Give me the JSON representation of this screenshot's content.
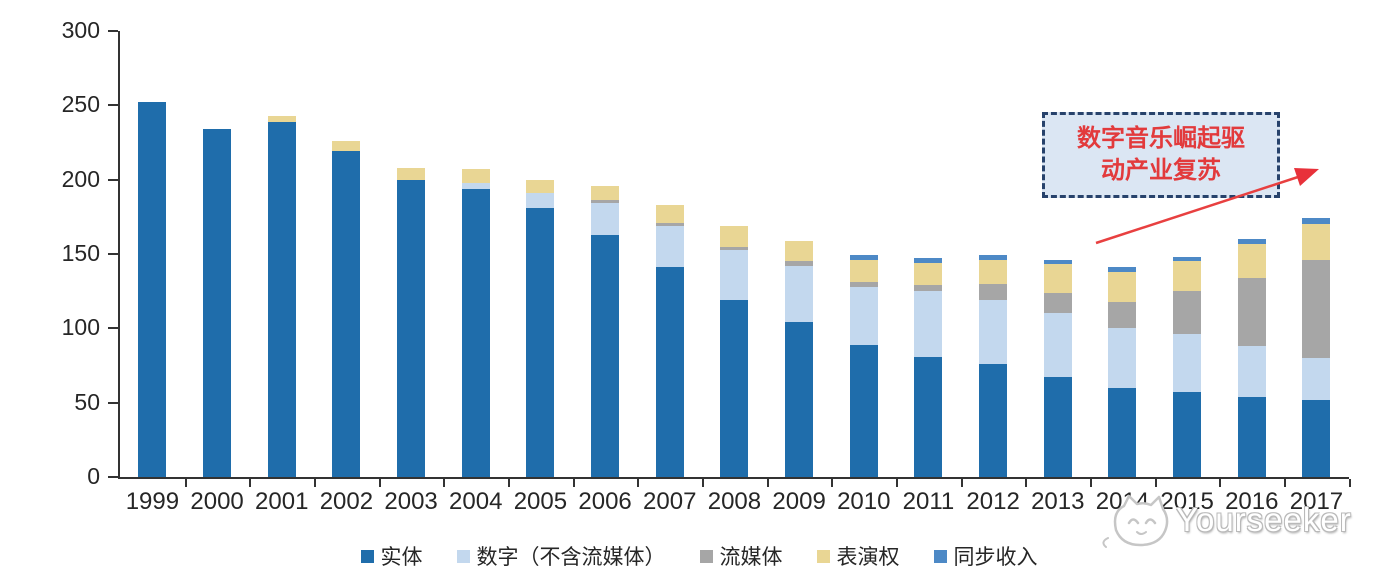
{
  "chart_data": {
    "type": "bar",
    "stacked": true,
    "title": "",
    "xlabel": "",
    "ylabel": "",
    "ylim": [
      0,
      300
    ],
    "y_ticks": [
      0,
      50,
      100,
      150,
      200,
      250,
      300
    ],
    "grid": false,
    "legend_position": "bottom",
    "categories": [
      "1999",
      "2000",
      "2001",
      "2002",
      "2003",
      "2004",
      "2005",
      "2006",
      "2007",
      "2008",
      "2009",
      "2010",
      "2011",
      "2012",
      "2013",
      "2014",
      "2015",
      "2016",
      "2017"
    ],
    "series": [
      {
        "key": "physical",
        "name": "实体",
        "color": "#1f6dab",
        "values": [
          252,
          234,
          239,
          219,
          200,
          194,
          181,
          163,
          141,
          119,
          104,
          89,
          81,
          76,
          67,
          60,
          57,
          54,
          52
        ]
      },
      {
        "key": "digital-excl-streaming",
        "name": "数字（不含流媒体）",
        "color": "#c3d8ee",
        "values": [
          0,
          0,
          0,
          0,
          0,
          4,
          10,
          21,
          28,
          34,
          38,
          39,
          44,
          43,
          43,
          40,
          39,
          34,
          28
        ]
      },
      {
        "key": "streaming",
        "name": "流媒体",
        "color": "#a6a6a6",
        "values": [
          0,
          0,
          0,
          0,
          0,
          0,
          0,
          2,
          2,
          2,
          3,
          3,
          4,
          11,
          14,
          18,
          29,
          46,
          66
        ]
      },
      {
        "key": "performance-rights",
        "name": "表演权",
        "color": "#e9d694",
        "values": [
          0,
          0,
          4,
          7,
          8,
          9,
          9,
          10,
          12,
          14,
          14,
          15,
          15,
          16,
          19,
          20,
          20,
          23,
          24
        ]
      },
      {
        "key": "sync-revenue",
        "name": "同步收入",
        "color": "#4d89c6",
        "values": [
          0,
          0,
          0,
          0,
          0,
          0,
          0,
          0,
          0,
          0,
          0,
          3,
          3,
          3,
          3,
          3,
          3,
          3,
          4
        ]
      }
    ]
  },
  "annotation": {
    "line1": "数字音乐崛起驱",
    "line2": "动产业复苏",
    "full_text": "数字音乐崛起驱动产业复苏"
  },
  "watermark": {
    "text": "Yourseeker"
  },
  "colors": {
    "axis": "#333333",
    "tick_label": "#262626",
    "annotation_text": "#e23a3c",
    "annotation_border": "#27426b",
    "annotation_fill": "#dbe6f3",
    "arrow": "#e84040"
  }
}
